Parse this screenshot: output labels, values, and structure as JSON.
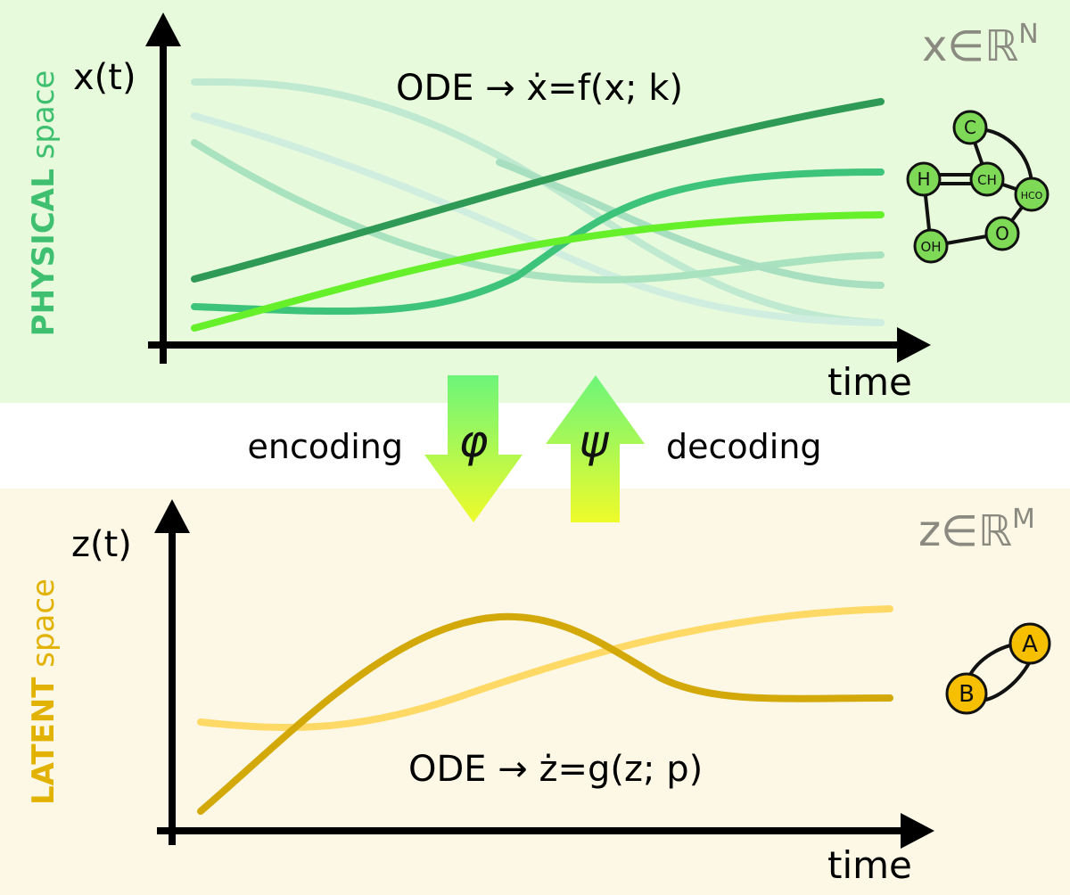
{
  "physical": {
    "side_label_bold": "PHYSICAL",
    "side_label_rest": " space",
    "y_label": "x(t)",
    "x_label": "time",
    "equation": "ODE → ẋ=f(x; k)",
    "space_var": "x",
    "space_in": "∈",
    "space_set": "ℝ",
    "space_dim": "N",
    "network_nodes": [
      "C",
      "H",
      "CH",
      "HCO",
      "OH",
      "O"
    ]
  },
  "latent": {
    "side_label_bold": "LATENT",
    "side_label_rest": " space",
    "y_label": "z(t)",
    "x_label": "time",
    "equation": "ODE → ż=g(z; p)",
    "space_var": "z",
    "space_in": "∈",
    "space_set": "ℝ",
    "space_dim": "M",
    "network_nodes": [
      "A",
      "B"
    ]
  },
  "transform": {
    "encoding_label": "encoding",
    "encoding_symbol": "φ",
    "decoding_label": "decoding",
    "decoding_symbol": "ψ"
  },
  "colors": {
    "physical_bg": "#e8fadc",
    "latent_bg": "#fdf8e6",
    "physical_label": "#3fc070",
    "latent_label": "#e2b200",
    "space_text": "#8a8a80",
    "node_green": "#7ed957",
    "node_yellow": "#f6c000"
  }
}
